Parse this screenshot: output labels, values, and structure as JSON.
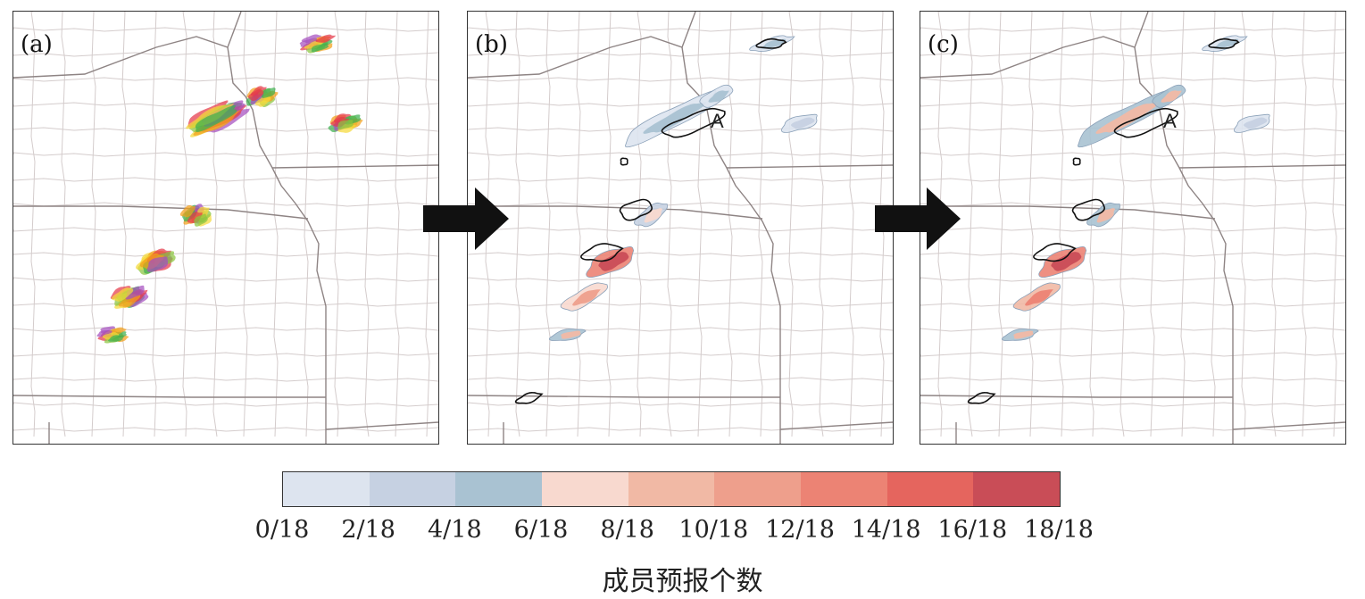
{
  "panels": [
    {
      "label": "(a)"
    },
    {
      "label": "(b)",
      "annotation": "A"
    },
    {
      "label": "(c)",
      "annotation": "A"
    }
  ],
  "colorbar": {
    "title": "成员预报个数",
    "colors": [
      "#dde4ef",
      "#c6d1e2",
      "#a9c2d2",
      "#f8d9cf",
      "#f1b9a5",
      "#ee9f8c",
      "#ec8374",
      "#e5655e",
      "#c94d57"
    ],
    "ticks": [
      "0/18",
      "2/18",
      "4/18",
      "6/18",
      "8/18",
      "10/18",
      "12/18",
      "14/18",
      "16/18",
      "18/18"
    ]
  },
  "member_colors": [
    "#e5394a",
    "#8bc53f",
    "#f2a01a",
    "#a54fbf",
    "#f5d93a",
    "#3fb04f"
  ]
}
